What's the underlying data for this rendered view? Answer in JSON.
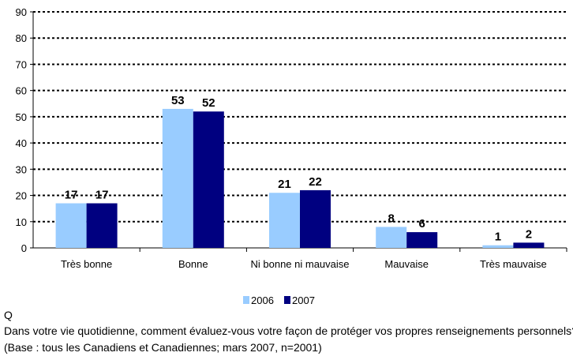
{
  "chart_data": {
    "type": "bar",
    "categories": [
      "Très bonne",
      "Bonne",
      "Ni bonne ni mauvaise",
      "Mauvaise",
      "Très mauvaise"
    ],
    "series": [
      {
        "name": "2006",
        "values": [
          17,
          53,
          21,
          8,
          1
        ],
        "color": "#99ccff"
      },
      {
        "name": "2007",
        "values": [
          17,
          52,
          22,
          6,
          2
        ],
        "color": "#000080"
      }
    ],
    "ylim": [
      0,
      90
    ],
    "yticks": [
      0,
      10,
      20,
      30,
      40,
      50,
      60,
      70,
      80,
      90
    ],
    "grid": "dotted horizontal",
    "legend_position": "bottom-center"
  },
  "caption": {
    "q_label": "Q",
    "question": "Dans votre vie quotidienne, comment évaluez-vous votre façon de protéger vos propres renseignements personnels?",
    "base": "(Base : tous les Canadiens et Canadiennes; mars 2007, n=2001)"
  }
}
